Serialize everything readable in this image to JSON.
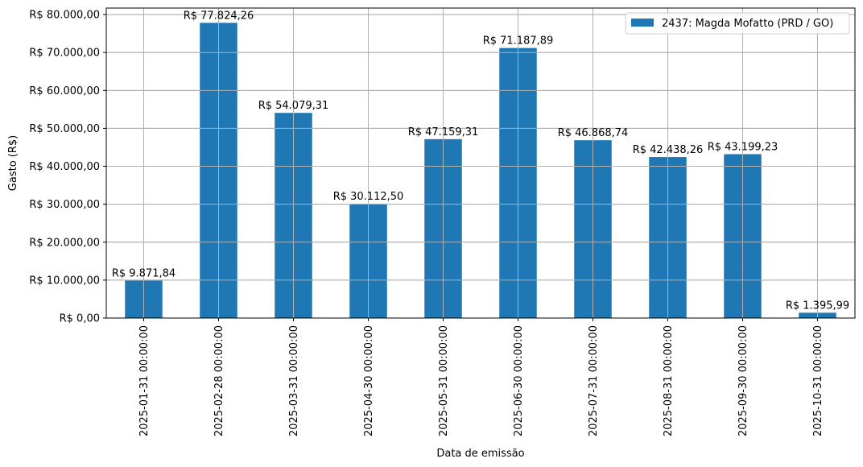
{
  "chart_data": {
    "type": "bar",
    "title": "",
    "xlabel": "Data de emissão",
    "ylabel": "Gasto (R$)",
    "ylim": [
      0,
      81716.47
    ],
    "grid": true,
    "legend_position": "upper right",
    "categories": [
      "2025-01-31 00:00:00",
      "2025-02-28 00:00:00",
      "2025-03-31 00:00:00",
      "2025-04-30 00:00:00",
      "2025-05-31 00:00:00",
      "2025-06-30 00:00:00",
      "2025-07-31 00:00:00",
      "2025-08-31 00:00:00",
      "2025-09-30 00:00:00",
      "2025-10-31 00:00:00"
    ],
    "series": [
      {
        "name": "2437: Magda Mofatto (PRD / GO)",
        "color": "#1f77b4",
        "values": [
          9871.84,
          77824.26,
          54079.31,
          30112.5,
          47159.31,
          71187.89,
          46868.74,
          42438.26,
          43199.23,
          1395.99
        ],
        "labels": [
          "R$ 9.871,84",
          "R$ 77.824,26",
          "R$ 54.079,31",
          "R$ 30.112,50",
          "R$ 47.159,31",
          "R$ 71.187,89",
          "R$ 46.868,74",
          "R$ 42.438,26",
          "R$ 43.199,23",
          "R$ 1.395,99"
        ]
      }
    ],
    "yticks": [
      0,
      10000,
      20000,
      30000,
      40000,
      50000,
      60000,
      70000,
      80000
    ],
    "ytick_labels": [
      "R$ 0,00",
      "R$ 10.000,00",
      "R$ 20.000,00",
      "R$ 30.000,00",
      "R$ 40.000,00",
      "R$ 50.000,00",
      "R$ 60.000,00",
      "R$ 70.000,00",
      "R$ 80.000,00"
    ]
  },
  "colors": {
    "bar": "#1f77b4",
    "grid": "#b0b0b0",
    "axis": "#000000",
    "legend_border": "#cccccc"
  }
}
